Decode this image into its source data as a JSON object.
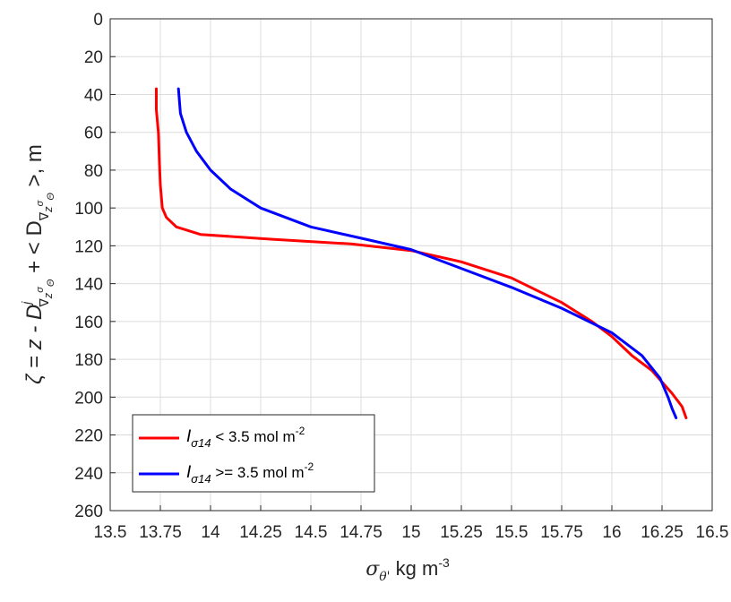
{
  "chart_data": {
    "type": "line",
    "xlabel": {
      "symbol": "σ",
      "sub": "θ'",
      "rest": " kg m",
      "sup": "-3"
    },
    "ylabel": {
      "p1": "ζ = z - D",
      "p1_sup": "j",
      "p1_sub": "∇",
      "p1_sub2": "z",
      "p1_sub2sup": "σ",
      "p1_sub3": "Θ",
      "p2": " + < D",
      "p2_sub": "∇",
      "p2_sub2": "z",
      "p2_sub2sup": "σ",
      "p2_sub3": "Θ",
      "p3": " >, m"
    },
    "xlim": [
      13.5,
      16.5
    ],
    "ylim": [
      0,
      260
    ],
    "y_reversed": true,
    "grid": true,
    "xticks": [
      13.5,
      13.75,
      14,
      14.25,
      14.5,
      14.75,
      15,
      15.25,
      15.5,
      15.75,
      16,
      16.25,
      16.5
    ],
    "xtick_labels": [
      "13.5",
      "13.75",
      "14",
      "14.25",
      "14.5",
      "14.75",
      "15",
      "15.25",
      "15.5",
      "15.75",
      "16",
      "16.25",
      "16.5"
    ],
    "yticks": [
      0,
      20,
      40,
      60,
      80,
      100,
      120,
      140,
      160,
      180,
      200,
      220,
      240,
      260
    ],
    "ytick_labels": [
      "0",
      "20",
      "40",
      "60",
      "80",
      "100",
      "120",
      "140",
      "160",
      "180",
      "200",
      "220",
      "240",
      "260"
    ],
    "legend_position": "bottom-left",
    "series": [
      {
        "name": "I_σ14 < 3.5 mol m^-2",
        "legend": {
          "main": "I",
          "sub": "σ14",
          "text": " < 3.5 mol m",
          "sup": "-2"
        },
        "color": "#ff0000",
        "points": [
          [
            13.73,
            37
          ],
          [
            13.73,
            48
          ],
          [
            13.74,
            60
          ],
          [
            13.745,
            75
          ],
          [
            13.75,
            88
          ],
          [
            13.76,
            100
          ],
          [
            13.78,
            105
          ],
          [
            13.83,
            110
          ],
          [
            13.95,
            114
          ],
          [
            14.3,
            116.5
          ],
          [
            14.7,
            119
          ],
          [
            15.0,
            122.5
          ],
          [
            15.25,
            128.5
          ],
          [
            15.5,
            137
          ],
          [
            15.75,
            150
          ],
          [
            15.9,
            160
          ],
          [
            16.0,
            168
          ],
          [
            16.1,
            178
          ],
          [
            16.2,
            186
          ],
          [
            16.3,
            198
          ],
          [
            16.35,
            205
          ],
          [
            16.37,
            211
          ]
        ]
      },
      {
        "name": "I_σ14 >= 3.5 mol m^-2",
        "legend": {
          "main": "I",
          "sub": "σ14",
          "text": " >= 3.5 mol m",
          "sup": "-2"
        },
        "color": "#0000ff",
        "points": [
          [
            13.84,
            37
          ],
          [
            13.85,
            50
          ],
          [
            13.88,
            60
          ],
          [
            13.93,
            70
          ],
          [
            14.0,
            80
          ],
          [
            14.1,
            90
          ],
          [
            14.25,
            100
          ],
          [
            14.5,
            110
          ],
          [
            14.75,
            116
          ],
          [
            15.0,
            122
          ],
          [
            15.2,
            130
          ],
          [
            15.5,
            142
          ],
          [
            15.75,
            153
          ],
          [
            16.0,
            166
          ],
          [
            16.15,
            178
          ],
          [
            16.24,
            190
          ],
          [
            16.28,
            200
          ],
          [
            16.3,
            206
          ],
          [
            16.32,
            211
          ]
        ]
      }
    ]
  }
}
